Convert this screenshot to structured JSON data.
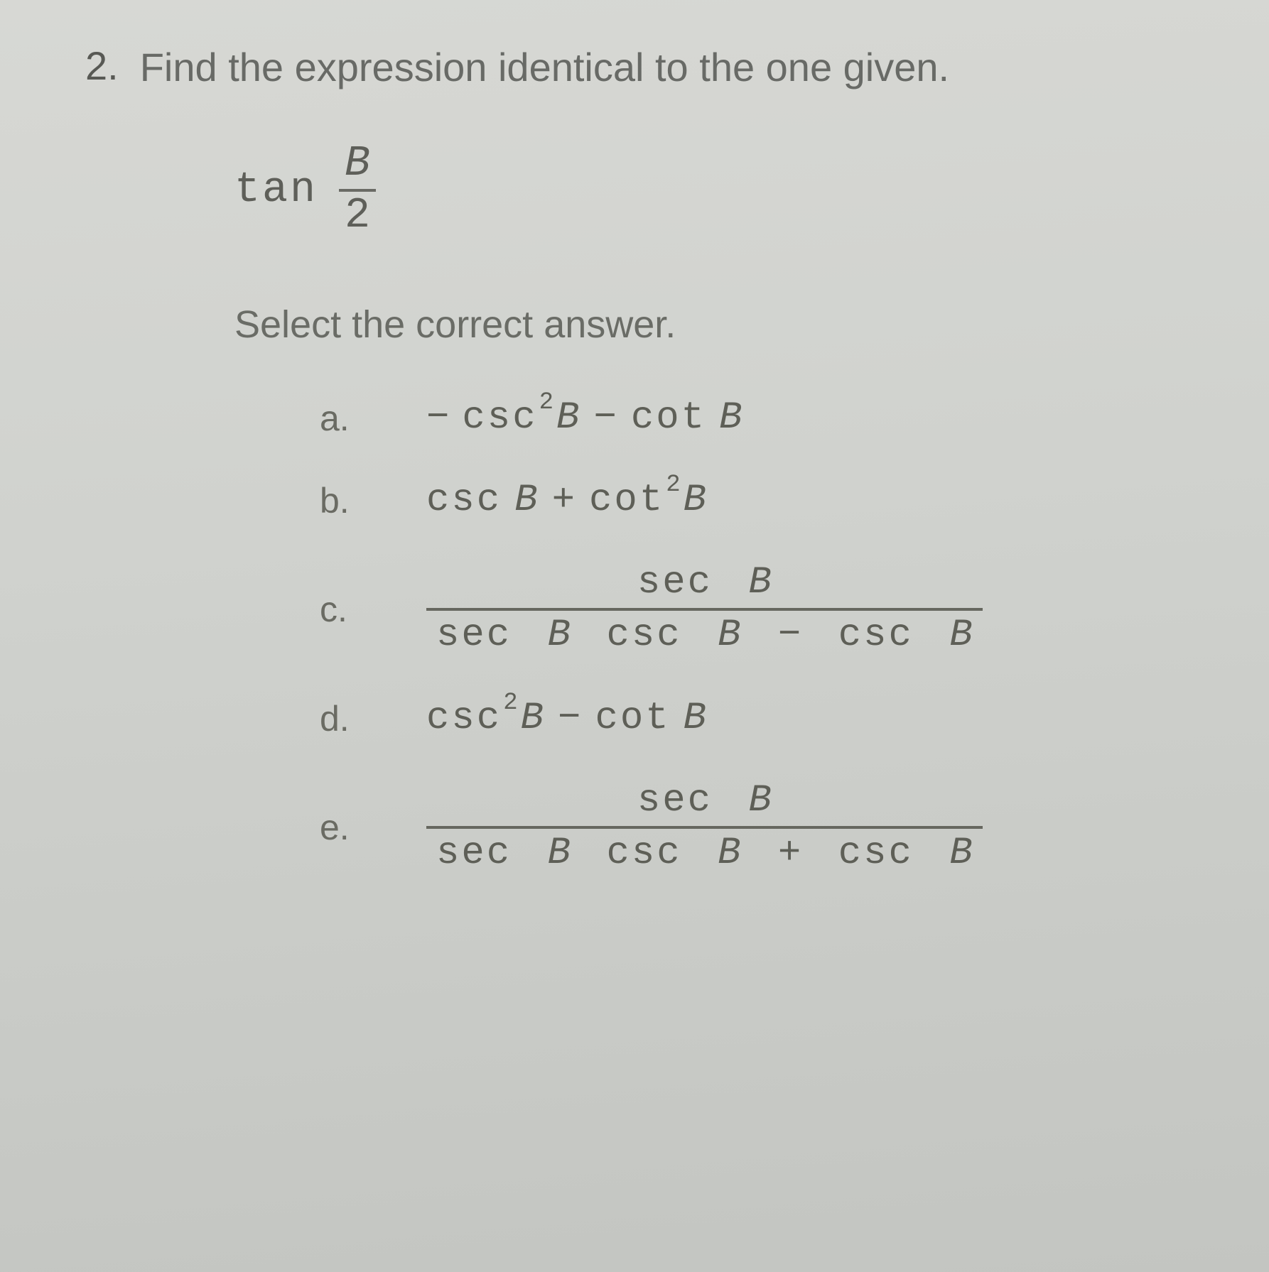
{
  "question": {
    "number": "2.",
    "prompt": "Find the expression identical to the one given.",
    "given": {
      "func": "tan",
      "frac_num": "B",
      "frac_den": "2"
    },
    "select_text": "Select the correct answer."
  },
  "options": {
    "a": {
      "label": "a.",
      "type": "poly",
      "neg_leading": "−",
      "term1_fn": "csc",
      "term1_sup": "2",
      "term1_var": "B",
      "op": "−",
      "term2_fn": "cot",
      "term2_var": "B"
    },
    "b": {
      "label": "b.",
      "type": "poly",
      "term1_fn": "csc",
      "term1_var": "B",
      "op": "+",
      "term2_fn": "cot",
      "term2_sup": "2",
      "term2_var": "B"
    },
    "c": {
      "label": "c.",
      "type": "frac",
      "num_fn": "sec",
      "num_var": "B",
      "den_t1_fn": "sec",
      "den_t1_var": "B",
      "den_t2_fn": "csc",
      "den_t2_var": "B",
      "den_op": "−",
      "den_t3_fn": "csc",
      "den_t3_var": "B"
    },
    "d": {
      "label": "d.",
      "type": "poly",
      "term1_fn": "csc",
      "term1_sup": "2",
      "term1_var": "B",
      "op": "−",
      "term2_fn": "cot",
      "term2_var": "B"
    },
    "e": {
      "label": "e.",
      "type": "frac",
      "num_fn": "sec",
      "num_var": "B",
      "den_t1_fn": "sec",
      "den_t1_var": "B",
      "den_t2_fn": "csc",
      "den_t2_var": "B",
      "den_op": "+",
      "den_t3_fn": "csc",
      "den_t3_var": "B"
    }
  },
  "style": {
    "background_top": "#d7d8d4",
    "background_bottom": "#c3c5c1",
    "text_color": "#5a5b57",
    "bar_color": "#66675f",
    "question_fontsize": 56,
    "option_fontsize": 54,
    "label_fontsize": 50,
    "sup_fontsize": 34,
    "font_family_body": "Arial",
    "font_family_math": "Courier New"
  }
}
